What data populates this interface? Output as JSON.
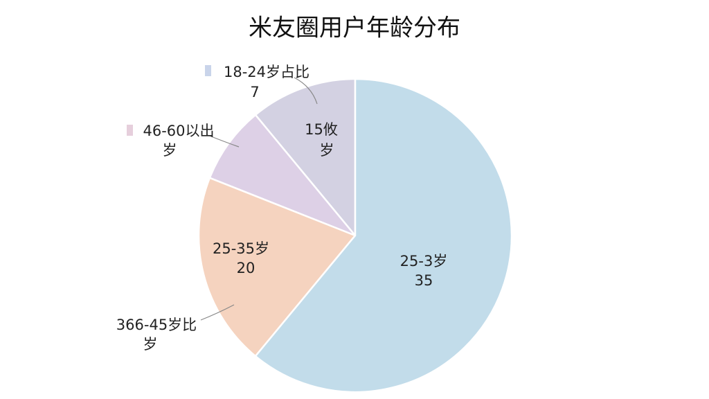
{
  "chart_data": {
    "type": "pie",
    "title": "米友圈用户年龄分布",
    "categories": [
      [
        "25-3岁",
        "35"
      ],
      [
        "25-35岁",
        "20"
      ],
      [
        "46-60以出",
        "岁"
      ],
      [
        "18-24岁占比",
        "7"
      ]
    ],
    "values": [
      61,
      20,
      8,
      11
    ],
    "colors": [
      "#c2dcea",
      "#f5d3bf",
      "#ddd0e6",
      "#d3d1e2"
    ],
    "annotations": [
      [
        "15攸",
        "岁"
      ],
      [
        "366-45岁比",
        "岁"
      ]
    ]
  }
}
